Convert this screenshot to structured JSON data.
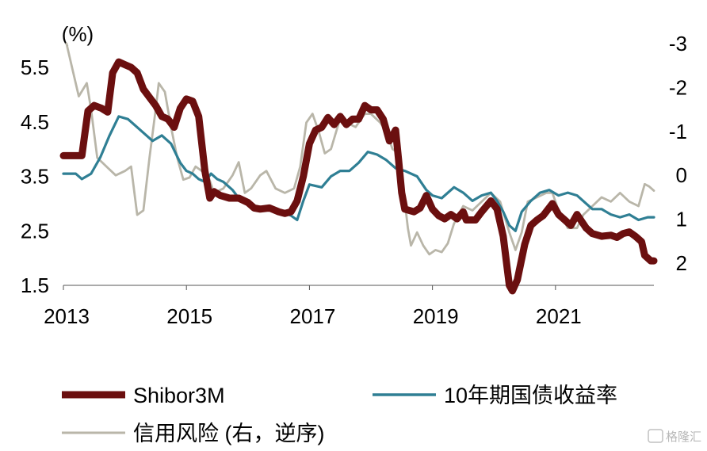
{
  "chart_data": {
    "type": "line",
    "unit_label": "(%)",
    "x_ticks": [
      "2013",
      "2015",
      "2017",
      "2019",
      "2021"
    ],
    "x_range": [
      2013.0,
      2022.6
    ],
    "y_left": {
      "ticks": [
        "5.5",
        "4.5",
        "3.5",
        "2.5",
        "1.5"
      ],
      "range": [
        1.5,
        5.5
      ]
    },
    "y_right": {
      "ticks": [
        "-3",
        "-2",
        "-1",
        "0",
        "1",
        "2"
      ],
      "range": [
        -3,
        2
      ],
      "inverted": true
    },
    "series": [
      {
        "name": "Shibor3M",
        "axis": "left",
        "color": "#6b0f0f",
        "points": [
          [
            2013.0,
            3.88
          ],
          [
            2013.3,
            3.88
          ],
          [
            2013.35,
            4.3
          ],
          [
            2013.4,
            4.7
          ],
          [
            2013.5,
            4.8
          ],
          [
            2013.62,
            4.75
          ],
          [
            2013.72,
            4.68
          ],
          [
            2013.8,
            5.4
          ],
          [
            2013.9,
            5.6
          ],
          [
            2014.0,
            5.55
          ],
          [
            2014.1,
            5.5
          ],
          [
            2014.2,
            5.4
          ],
          [
            2014.3,
            5.1
          ],
          [
            2014.4,
            4.95
          ],
          [
            2014.5,
            4.8
          ],
          [
            2014.6,
            4.6
          ],
          [
            2014.7,
            4.55
          ],
          [
            2014.8,
            4.4
          ],
          [
            2014.9,
            4.75
          ],
          [
            2015.0,
            4.92
          ],
          [
            2015.1,
            4.88
          ],
          [
            2015.2,
            4.6
          ],
          [
            2015.3,
            3.6
          ],
          [
            2015.38,
            3.1
          ],
          [
            2015.45,
            3.22
          ],
          [
            2015.55,
            3.15
          ],
          [
            2015.7,
            3.1
          ],
          [
            2015.85,
            3.1
          ],
          [
            2016.0,
            3.02
          ],
          [
            2016.1,
            2.92
          ],
          [
            2016.2,
            2.9
          ],
          [
            2016.35,
            2.92
          ],
          [
            2016.5,
            2.85
          ],
          [
            2016.6,
            2.82
          ],
          [
            2016.7,
            2.85
          ],
          [
            2016.8,
            3.05
          ],
          [
            2016.9,
            3.5
          ],
          [
            2017.0,
            4.1
          ],
          [
            2017.1,
            4.35
          ],
          [
            2017.2,
            4.4
          ],
          [
            2017.3,
            4.58
          ],
          [
            2017.4,
            4.45
          ],
          [
            2017.5,
            4.6
          ],
          [
            2017.6,
            4.45
          ],
          [
            2017.7,
            4.55
          ],
          [
            2017.8,
            4.55
          ],
          [
            2017.9,
            4.8
          ],
          [
            2018.0,
            4.72
          ],
          [
            2018.1,
            4.72
          ],
          [
            2018.2,
            4.55
          ],
          [
            2018.3,
            4.15
          ],
          [
            2018.4,
            4.35
          ],
          [
            2018.45,
            3.8
          ],
          [
            2018.5,
            3.2
          ],
          [
            2018.55,
            2.9
          ],
          [
            2018.7,
            2.85
          ],
          [
            2018.8,
            2.92
          ],
          [
            2018.9,
            3.15
          ],
          [
            2019.0,
            2.9
          ],
          [
            2019.1,
            2.78
          ],
          [
            2019.2,
            2.72
          ],
          [
            2019.3,
            2.8
          ],
          [
            2019.4,
            2.72
          ],
          [
            2019.5,
            2.85
          ],
          [
            2019.55,
            2.7
          ],
          [
            2019.7,
            2.7
          ],
          [
            2019.8,
            2.85
          ],
          [
            2019.95,
            3.05
          ],
          [
            2020.05,
            2.9
          ],
          [
            2020.15,
            2.4
          ],
          [
            2020.25,
            1.5
          ],
          [
            2020.3,
            1.4
          ],
          [
            2020.38,
            1.6
          ],
          [
            2020.5,
            2.25
          ],
          [
            2020.6,
            2.6
          ],
          [
            2020.7,
            2.7
          ],
          [
            2020.8,
            2.78
          ],
          [
            2020.95,
            3.0
          ],
          [
            2021.05,
            2.8
          ],
          [
            2021.15,
            2.7
          ],
          [
            2021.25,
            2.6
          ],
          [
            2021.35,
            2.8
          ],
          [
            2021.5,
            2.55
          ],
          [
            2021.6,
            2.45
          ],
          [
            2021.75,
            2.4
          ],
          [
            2021.9,
            2.42
          ],
          [
            2022.0,
            2.38
          ],
          [
            2022.1,
            2.45
          ],
          [
            2022.2,
            2.48
          ],
          [
            2022.3,
            2.4
          ],
          [
            2022.4,
            2.3
          ],
          [
            2022.45,
            2.05
          ],
          [
            2022.55,
            1.95
          ],
          [
            2022.6,
            1.95
          ]
        ]
      },
      {
        "name": "10年期国债收益率",
        "axis": "left",
        "color": "#2f7f94",
        "points": [
          [
            2013.0,
            3.55
          ],
          [
            2013.2,
            3.55
          ],
          [
            2013.3,
            3.45
          ],
          [
            2013.45,
            3.55
          ],
          [
            2013.6,
            3.85
          ],
          [
            2013.75,
            4.25
          ],
          [
            2013.9,
            4.6
          ],
          [
            2014.05,
            4.55
          ],
          [
            2014.2,
            4.4
          ],
          [
            2014.35,
            4.25
          ],
          [
            2014.45,
            4.15
          ],
          [
            2014.6,
            4.25
          ],
          [
            2014.75,
            4.1
          ],
          [
            2014.9,
            3.75
          ],
          [
            2015.0,
            3.6
          ],
          [
            2015.1,
            3.55
          ],
          [
            2015.2,
            3.45
          ],
          [
            2015.3,
            3.4
          ],
          [
            2015.4,
            3.55
          ],
          [
            2015.5,
            3.45
          ],
          [
            2015.6,
            3.4
          ],
          [
            2015.75,
            3.25
          ],
          [
            2015.85,
            3.1
          ],
          [
            2016.0,
            3.0
          ],
          [
            2016.1,
            2.9
          ],
          [
            2016.25,
            2.88
          ],
          [
            2016.4,
            2.88
          ],
          [
            2016.55,
            2.85
          ],
          [
            2016.7,
            2.78
          ],
          [
            2016.8,
            2.7
          ],
          [
            2016.9,
            3.05
          ],
          [
            2017.0,
            3.35
          ],
          [
            2017.2,
            3.3
          ],
          [
            2017.35,
            3.5
          ],
          [
            2017.5,
            3.6
          ],
          [
            2017.65,
            3.6
          ],
          [
            2017.8,
            3.75
          ],
          [
            2017.95,
            3.95
          ],
          [
            2018.1,
            3.9
          ],
          [
            2018.25,
            3.8
          ],
          [
            2018.4,
            3.65
          ],
          [
            2018.55,
            3.6
          ],
          [
            2018.75,
            3.5
          ],
          [
            2018.9,
            3.25
          ],
          [
            2019.0,
            3.15
          ],
          [
            2019.15,
            3.1
          ],
          [
            2019.35,
            3.3
          ],
          [
            2019.5,
            3.2
          ],
          [
            2019.65,
            3.05
          ],
          [
            2019.8,
            3.15
          ],
          [
            2019.95,
            3.2
          ],
          [
            2020.05,
            3.05
          ],
          [
            2020.15,
            2.85
          ],
          [
            2020.25,
            2.6
          ],
          [
            2020.35,
            2.5
          ],
          [
            2020.45,
            2.85
          ],
          [
            2020.6,
            3.05
          ],
          [
            2020.75,
            3.2
          ],
          [
            2020.9,
            3.25
          ],
          [
            2021.05,
            3.15
          ],
          [
            2021.2,
            3.2
          ],
          [
            2021.35,
            3.15
          ],
          [
            2021.5,
            3.0
          ],
          [
            2021.6,
            2.9
          ],
          [
            2021.75,
            2.9
          ],
          [
            2021.9,
            2.8
          ],
          [
            2022.05,
            2.75
          ],
          [
            2022.2,
            2.8
          ],
          [
            2022.35,
            2.7
          ],
          [
            2022.5,
            2.75
          ],
          [
            2022.6,
            2.75
          ]
        ]
      },
      {
        "name": "信用风险 (右，逆序)",
        "axis": "right",
        "color": "#b9b6a9",
        "points": [
          [
            2013.05,
            -3.0
          ],
          [
            2013.15,
            -2.4
          ],
          [
            2013.25,
            -1.8
          ],
          [
            2013.38,
            -2.1
          ],
          [
            2013.45,
            -1.5
          ],
          [
            2013.55,
            -0.4
          ],
          [
            2013.7,
            -0.2
          ],
          [
            2013.85,
            0.0
          ],
          [
            2014.0,
            -0.1
          ],
          [
            2014.1,
            -0.2
          ],
          [
            2014.2,
            0.9
          ],
          [
            2014.3,
            0.8
          ],
          [
            2014.4,
            -0.4
          ],
          [
            2014.5,
            -1.5
          ],
          [
            2014.55,
            -2.1
          ],
          [
            2014.65,
            -1.9
          ],
          [
            2014.75,
            -1.1
          ],
          [
            2014.85,
            -0.4
          ],
          [
            2014.95,
            0.1
          ],
          [
            2015.05,
            0.05
          ],
          [
            2015.15,
            -0.2
          ],
          [
            2015.25,
            -0.1
          ],
          [
            2015.35,
            0.0
          ],
          [
            2015.45,
            0.4
          ],
          [
            2015.6,
            0.3
          ],
          [
            2015.75,
            0.0
          ],
          [
            2015.85,
            -0.3
          ],
          [
            2015.95,
            0.4
          ],
          [
            2016.05,
            0.3
          ],
          [
            2016.2,
            0.0
          ],
          [
            2016.3,
            -0.1
          ],
          [
            2016.45,
            0.3
          ],
          [
            2016.6,
            0.4
          ],
          [
            2016.75,
            0.3
          ],
          [
            2016.85,
            -0.2
          ],
          [
            2016.95,
            -1.2
          ],
          [
            2017.05,
            -1.4
          ],
          [
            2017.15,
            -1.0
          ],
          [
            2017.25,
            -0.5
          ],
          [
            2017.35,
            -0.6
          ],
          [
            2017.5,
            -1.3
          ],
          [
            2017.6,
            -1.2
          ],
          [
            2017.75,
            -1.1
          ],
          [
            2017.9,
            -1.4
          ],
          [
            2018.0,
            -1.4
          ],
          [
            2018.15,
            -1.2
          ],
          [
            2018.25,
            -1.0
          ],
          [
            2018.35,
            -0.6
          ],
          [
            2018.45,
            -0.5
          ],
          [
            2018.5,
            0.0
          ],
          [
            2018.6,
            1.2
          ],
          [
            2018.65,
            1.6
          ],
          [
            2018.75,
            1.3
          ],
          [
            2018.85,
            1.6
          ],
          [
            2018.95,
            1.8
          ],
          [
            2019.05,
            1.7
          ],
          [
            2019.15,
            1.75
          ],
          [
            2019.25,
            1.55
          ],
          [
            2019.35,
            1.1
          ],
          [
            2019.5,
            0.7
          ],
          [
            2019.65,
            0.8
          ],
          [
            2019.8,
            0.6
          ],
          [
            2019.95,
            0.4
          ],
          [
            2020.1,
            0.6
          ],
          [
            2020.25,
            1.3
          ],
          [
            2020.35,
            1.7
          ],
          [
            2020.45,
            1.3
          ],
          [
            2020.55,
            0.6
          ],
          [
            2020.7,
            0.5
          ],
          [
            2020.85,
            0.4
          ],
          [
            2020.95,
            0.4
          ],
          [
            2021.05,
            0.8
          ],
          [
            2021.2,
            1.2
          ],
          [
            2021.35,
            1.2
          ],
          [
            2021.45,
            0.9
          ],
          [
            2021.6,
            0.7
          ],
          [
            2021.75,
            0.5
          ],
          [
            2021.9,
            0.6
          ],
          [
            2022.05,
            0.4
          ],
          [
            2022.2,
            0.6
          ],
          [
            2022.35,
            0.7
          ],
          [
            2022.45,
            0.2
          ],
          [
            2022.52,
            0.25
          ],
          [
            2022.6,
            0.35
          ]
        ]
      }
    ]
  },
  "legend": {
    "shibor": "Shibor3M",
    "bond": "10年期国债收益率",
    "credit": "信用风险 (右，逆序)"
  },
  "watermark": "格隆汇"
}
